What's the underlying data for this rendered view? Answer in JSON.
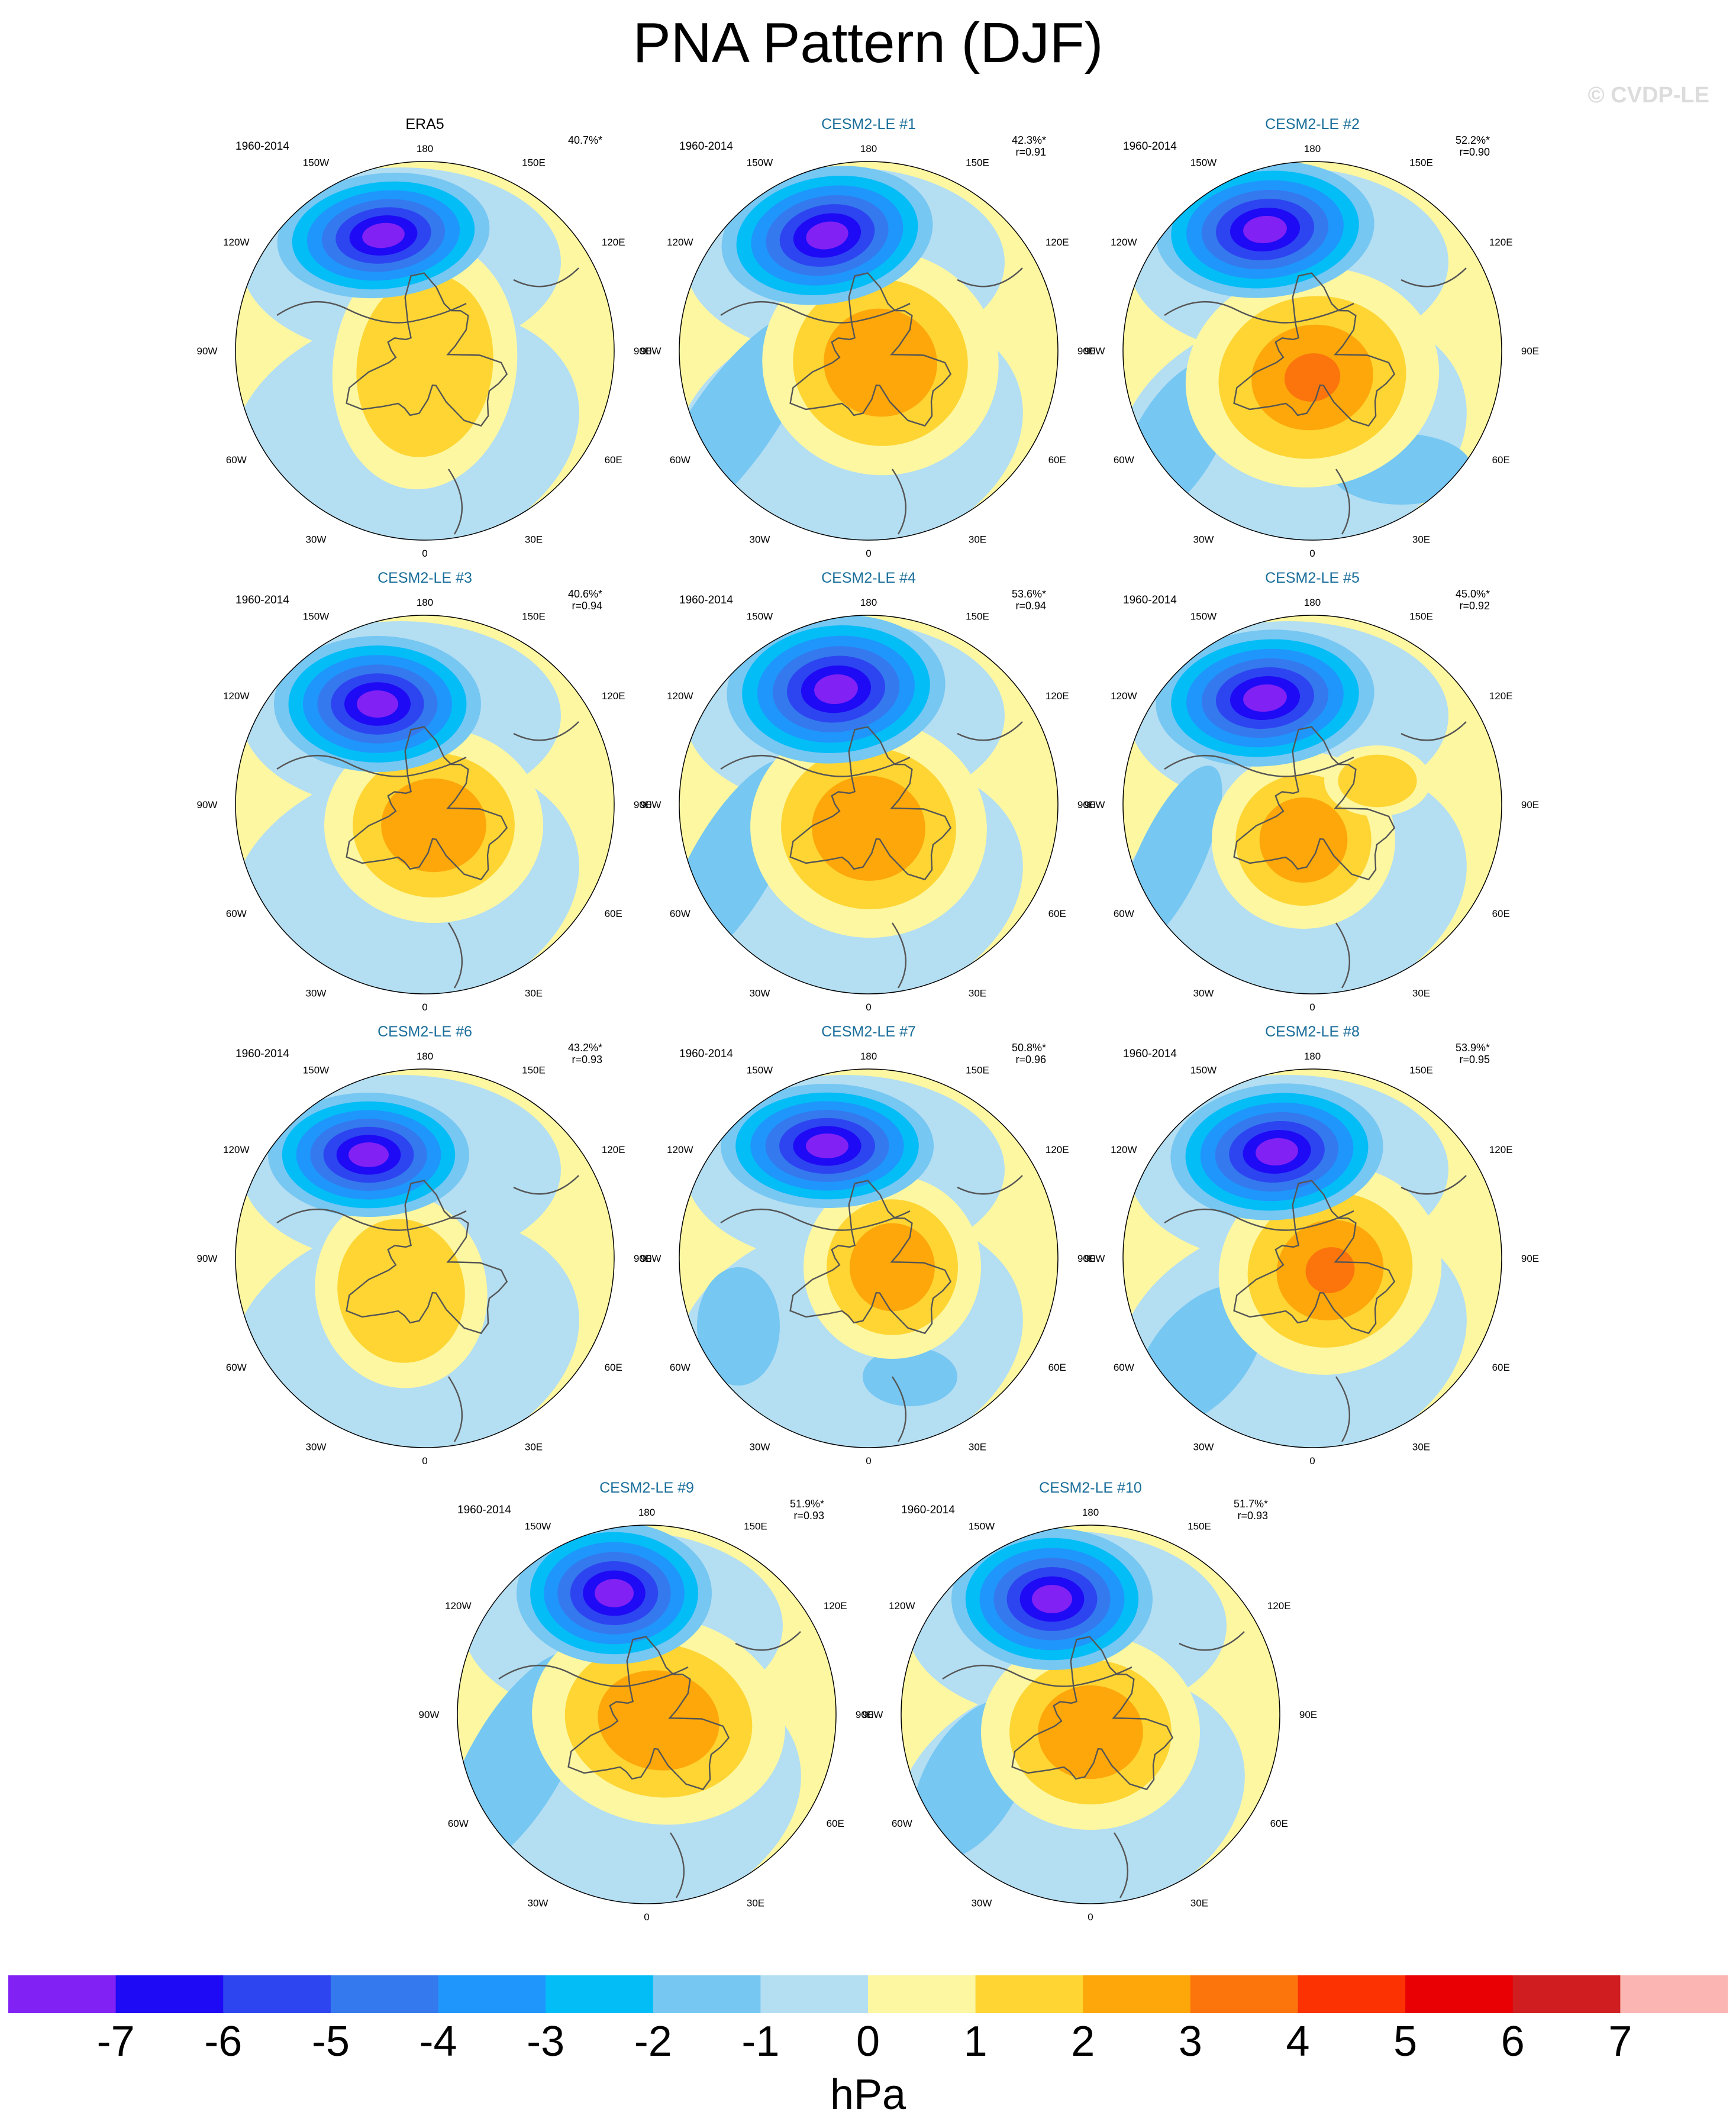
{
  "title": "PNA Pattern (DJF)",
  "credit": "© CVDP-LE",
  "panel_period": "1960-2014",
  "longitude_labels": [
    "180",
    "150E",
    "120E",
    "90E",
    "60E",
    "30E",
    "0",
    "30W",
    "60W",
    "90W",
    "120W",
    "150W"
  ],
  "panels": [
    {
      "name": "ERA5",
      "pct": "40.7%*",
      "r": "",
      "title_color": "#000000"
    },
    {
      "name": "CESM2-LE #1",
      "pct": "42.3%*",
      "r": "r=0.91",
      "title_color": "#1a6e9a"
    },
    {
      "name": "CESM2-LE #2",
      "pct": "52.2%*",
      "r": "r=0.90",
      "title_color": "#1a6e9a"
    },
    {
      "name": "CESM2-LE #3",
      "pct": "40.6%*",
      "r": "r=0.94",
      "title_color": "#1a6e9a"
    },
    {
      "name": "CESM2-LE #4",
      "pct": "53.6%*",
      "r": "r=0.94",
      "title_color": "#1a6e9a"
    },
    {
      "name": "CESM2-LE #5",
      "pct": "45.0%*",
      "r": "r=0.92",
      "title_color": "#1a6e9a"
    },
    {
      "name": "CESM2-LE #6",
      "pct": "43.2%*",
      "r": "r=0.93",
      "title_color": "#1a6e9a"
    },
    {
      "name": "CESM2-LE #7",
      "pct": "50.8%*",
      "r": "r=0.96",
      "title_color": "#1a6e9a"
    },
    {
      "name": "CESM2-LE #8",
      "pct": "53.9%*",
      "r": "r=0.95",
      "title_color": "#1a6e9a"
    },
    {
      "name": "CESM2-LE #9",
      "pct": "51.9%*",
      "r": "r=0.93",
      "title_color": "#1a6e9a"
    },
    {
      "name": "CESM2-LE #10",
      "pct": "51.7%*",
      "r": "r=0.93",
      "title_color": "#1a6e9a"
    }
  ],
  "colorbar": {
    "unit": "hPa",
    "ticks": [
      "-7",
      "-6",
      "-5",
      "-4",
      "-3",
      "-2",
      "-1",
      "0",
      "1",
      "2",
      "3",
      "4",
      "5",
      "6",
      "7"
    ],
    "colors": [
      "#8121f3",
      "#1e0af5",
      "#2d45f0",
      "#3579ee",
      "#1e96fc",
      "#03bdf7",
      "#76c7f2",
      "#b4def2",
      "#fdf7a2",
      "#fed533",
      "#fda70a",
      "#fc750c",
      "#fc3203",
      "#e90005",
      "#d01d1f",
      "#fbb6b4"
    ]
  }
}
